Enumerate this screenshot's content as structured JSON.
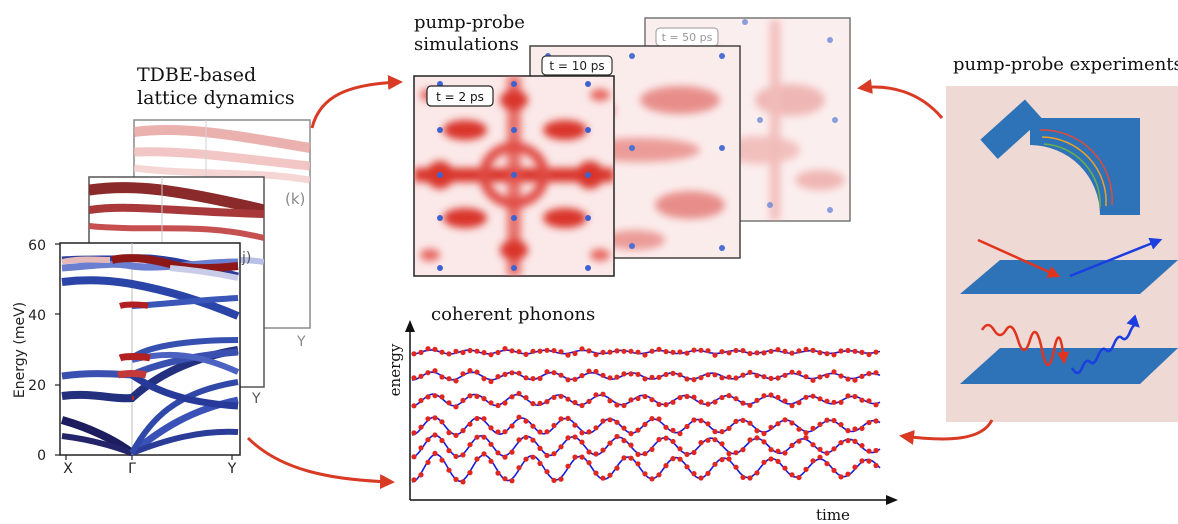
{
  "headings": {
    "tdbe_line1": "TDBE-based",
    "tdbe_line2": "lattice dynamics",
    "sim_line1": "pump-probe",
    "sim_line2": "simulations",
    "experiments": "pump-probe experiments",
    "coherent": "coherent phonons"
  },
  "band_plot": {
    "ylabel": "Energy (meV)",
    "yticks": [
      "0",
      "20",
      "40",
      "60"
    ],
    "xticks": [
      "X",
      "Γ",
      "Y"
    ],
    "panel_k_label": "(k)",
    "panel_j_label": "j)",
    "back_tick_1": "Y",
    "back_tick_2": "Y"
  },
  "simulation_frames": {
    "t1": "t = 2 ps",
    "t2": "t = 10 ps",
    "t3": "t = 50 ps"
  },
  "phonon_plot": {
    "ylabel": "energy",
    "xlabel": "time"
  },
  "colors": {
    "arrow": "#d83a24",
    "band_red": "#a8181c",
    "band_blue": "#243a9c",
    "sim_red": "#d9342c",
    "exp_bg": "#efd9d4",
    "exp_blue": "#2e73b7",
    "curve_blue": "#1a1ad8",
    "dot_red": "#e0261e"
  }
}
